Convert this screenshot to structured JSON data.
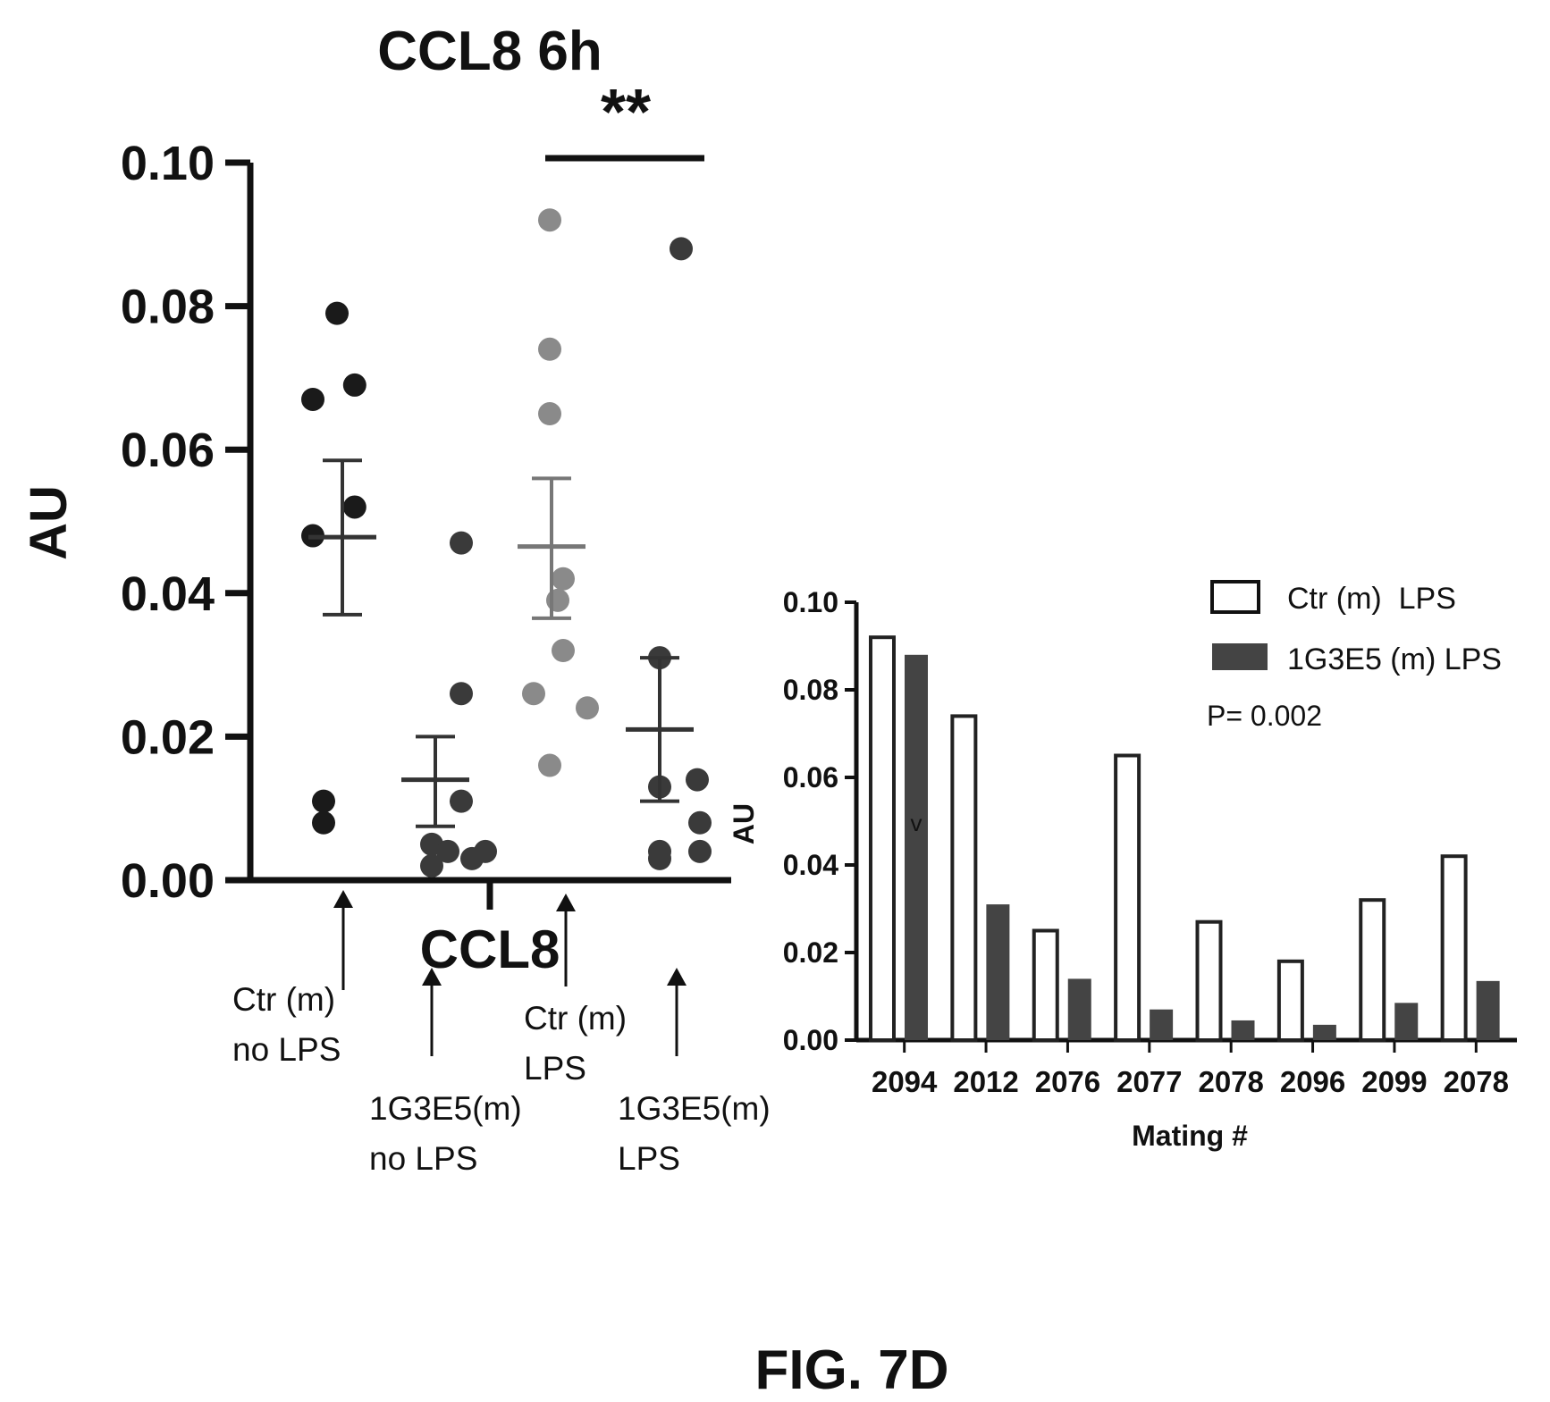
{
  "figure_label": "FIG. 7D",
  "chart_data": [
    {
      "type": "scatter",
      "title": "CCL8 6h",
      "xlabel": "CCL8",
      "ylabel": "AU",
      "ylim": [
        0,
        0.1
      ],
      "yticks": [
        "0.00",
        "0.02",
        "0.04",
        "0.06",
        "0.08",
        "0.10"
      ],
      "significance": "**",
      "groups": [
        {
          "label_lines": [
            "Ctr (m)",
            "no LPS"
          ],
          "color": "#1a1a1a",
          "points": [
            0.079,
            0.069,
            0.067,
            0.052,
            0.048,
            0.011,
            0.008
          ],
          "mean": 0.0478,
          "sem_upper": 0.0585,
          "sem_lower": 0.037
        },
        {
          "label_lines": [
            "1G3E5(m)",
            "no LPS"
          ],
          "color": "#3a3a3a",
          "points": [
            0.047,
            0.026,
            0.011,
            0.005,
            0.004,
            0.004,
            0.003,
            0.002
          ],
          "mean": 0.014,
          "sem_upper": 0.02,
          "sem_lower": 0.0075
        },
        {
          "label_lines": [
            "Ctr (m)",
            "LPS"
          ],
          "color": "#8a8a8a",
          "points": [
            0.092,
            0.074,
            0.065,
            0.042,
            0.039,
            0.032,
            0.026,
            0.024,
            0.016
          ],
          "mean": 0.0465,
          "sem_upper": 0.056,
          "sem_lower": 0.0365
        },
        {
          "label_lines": [
            "1G3E5(m)",
            "LPS"
          ],
          "color": "#3a3a3a",
          "points": [
            0.088,
            0.031,
            0.014,
            0.013,
            0.008,
            0.004,
            0.004,
            0.003
          ],
          "mean": 0.021,
          "sem_upper": 0.031,
          "sem_lower": 0.011
        }
      ]
    },
    {
      "type": "bar",
      "xlabel": "Mating #",
      "ylabel": "AU",
      "ylim": [
        0,
        0.1
      ],
      "yticks": [
        "0.00",
        "0.02",
        "0.04",
        "0.06",
        "0.08",
        "0.10"
      ],
      "categories": [
        "2094",
        "2012",
        "2076",
        "2077",
        "2078",
        "2096",
        "2099",
        "2078"
      ],
      "series": [
        {
          "name": "Ctr (m)  LPS",
          "style": "outline",
          "values": [
            0.092,
            0.074,
            0.025,
            0.065,
            0.027,
            0.018,
            0.032,
            0.042
          ]
        },
        {
          "name": "1G3E5 (m) LPS",
          "style": "filled",
          "color": "#444444",
          "values": [
            0.088,
            0.031,
            0.014,
            0.007,
            0.0045,
            0.0035,
            0.0085,
            0.0135
          ]
        }
      ],
      "annotation": "P= 0.002",
      "bar_mark": "v",
      "legend_position": "top-right"
    }
  ]
}
